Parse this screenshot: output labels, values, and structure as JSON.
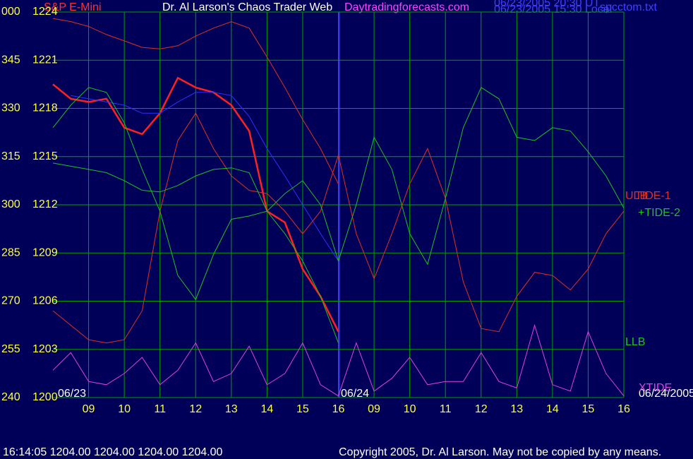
{
  "chart_data": {
    "type": "line",
    "title": "Dr. Al Larson's Chaos Trader Web",
    "website": "Daytradingforecasts.com",
    "instrument": "S&P E-Mini",
    "timestamps": [
      "06/23/2005 20:30 UT",
      "06/23/2005 15:30 Local"
    ],
    "file": "spcctom.txt",
    "date_labels": [
      "06/23",
      "06/24",
      "06/24/2005"
    ],
    "status": "16:14:05  1204.00 1204.00 1204.00 1204.00",
    "copyright": "Copyright 2005, Dr. Al Larson. May not be copied by any means.",
    "x": [
      0,
      0.5,
      1,
      1.5,
      2,
      2.5,
      3,
      3.5,
      4,
      4.5,
      5,
      5.5,
      6,
      6.5,
      7,
      7.5,
      8,
      8.5,
      9,
      9.5,
      10,
      10.5,
      11,
      11.5,
      12,
      12.5,
      13,
      13.5,
      14,
      14.5,
      15,
      15.5,
      16
    ],
    "xlim": [
      0,
      16
    ],
    "xticks": [
      {
        "value": 1,
        "label": "09"
      },
      {
        "value": 2,
        "label": "10"
      },
      {
        "value": 3,
        "label": "11"
      },
      {
        "value": 4,
        "label": "12"
      },
      {
        "value": 5,
        "label": "13"
      },
      {
        "value": 6,
        "label": "14"
      },
      {
        "value": 7,
        "label": "15"
      },
      {
        "value": 8,
        "label": "16"
      },
      {
        "value": 9,
        "label": "09"
      },
      {
        "value": 10,
        "label": "10"
      },
      {
        "value": 11,
        "label": "11"
      },
      {
        "value": 12,
        "label": "12"
      },
      {
        "value": 13,
        "label": "13"
      },
      {
        "value": 14,
        "label": "14"
      },
      {
        "value": 15,
        "label": "15"
      },
      {
        "value": 16,
        "label": "16"
      }
    ],
    "ylim": [
      1200,
      1224
    ],
    "yticks": [
      1200,
      1203,
      1206,
      1209,
      1212,
      1215,
      1218,
      1221,
      1224
    ],
    "y2lim": [
      240,
      360
    ],
    "y2ticks": [
      240,
      255,
      270,
      285,
      300,
      315,
      330,
      345,
      {
        "value": 360,
        "label": "000"
      }
    ],
    "grid": true,
    "series": [
      {
        "color": "#ff2020",
        "values": [
          1219.5,
          1218.6,
          1218.4,
          1218.6,
          1216.8,
          1216.4,
          1217.7,
          1219.9,
          1219.3,
          1219.0,
          1218.2,
          1216.6,
          1211.6,
          1210.9,
          1208.0,
          1206.3,
          1204.1,
          null,
          null,
          null,
          null,
          null,
          null,
          null,
          null,
          null,
          null,
          null,
          null,
          null,
          null,
          null,
          null
        ]
      },
      {
        "color": "#3030ff",
        "values": [
          null,
          1218.8,
          1218.6,
          1218.4,
          1218.2,
          1217.7,
          1217.7,
          1218.4,
          1219.0,
          1219.0,
          1218.8,
          1217.5,
          1215.5,
          1213.8,
          1212.0,
          1210.2,
          1208.5,
          null,
          null,
          null,
          null,
          null,
          null,
          null,
          null,
          null,
          null,
          null,
          null,
          null,
          null,
          null,
          null
        ]
      },
      {
        "name": "ULB",
        "color": "#e03020",
        "values": [
          1223.6,
          1223.4,
          1223.1,
          1222.6,
          1222.2,
          1221.8,
          1221.7,
          1221.9,
          1222.5,
          1223.0,
          1223.4,
          1223.0,
          1221.2,
          1219.3,
          1217.3,
          1215.5,
          1213.3,
          null,
          null,
          null,
          null,
          null,
          null,
          null,
          null,
          null,
          null,
          null,
          null,
          null,
          null,
          null,
          null
        ]
      },
      {
        "name": "TIDE-1",
        "color": "#e03020",
        "values": [
          1205.4,
          1204.5,
          1203.6,
          1203.4,
          1203.6,
          1205.4,
          1211.6,
          1216.0,
          1217.7,
          1215.5,
          1213.8,
          1212.9,
          1212.7,
          1211.6,
          1210.2,
          1211.6,
          1215.1,
          1210.2,
          1207.4,
          1210.2,
          1213.3,
          1215.5,
          1212.4,
          1207.2,
          1204.3,
          1204.1,
          1206.3,
          1207.8,
          1207.6,
          1206.7,
          1208.0,
          1210.2,
          1211.6
        ]
      },
      {
        "name": "+TIDE-2",
        "color": "#20c020",
        "values": [
          1216.8,
          1218.2,
          1219.3,
          1219.0,
          1217.1,
          1214.2,
          1211.6,
          1207.6,
          1206.1,
          1208.9,
          1211.1,
          1211.3,
          1211.6,
          1212.7,
          1213.5,
          1212.0,
          1208.5,
          1212.0,
          1216.2,
          1214.2,
          1210.2,
          1208.3,
          1212.4,
          1216.8,
          1219.3,
          1218.6,
          1216.2,
          1216.0,
          1216.8,
          1216.6,
          1215.3,
          1213.8,
          1211.8
        ]
      },
      {
        "name": "LLB",
        "color": "#20c020",
        "values": [
          1214.6,
          1214.4,
          1214.2,
          1214.0,
          1213.5,
          1212.9,
          1212.8,
          1213.2,
          1213.8,
          1214.2,
          1214.3,
          1214.0,
          1211.6,
          1210.2,
          1208.5,
          1206.3,
          1203.4,
          null,
          null,
          null,
          null,
          null,
          null,
          null,
          null,
          null,
          null,
          null,
          null,
          null,
          null,
          null,
          null
        ]
      },
      {
        "name": "XTIDE",
        "color": "#e040e0",
        "values": [
          1201.7,
          1202.8,
          1201.0,
          1200.8,
          1201.5,
          1202.5,
          1200.8,
          1201.7,
          1203.4,
          1201.0,
          1201.5,
          1203.2,
          1200.8,
          1201.5,
          1203.4,
          1200.8,
          1200.1,
          1203.4,
          1200.4,
          1201.2,
          1202.5,
          1200.8,
          1201.0,
          1201.0,
          1202.8,
          1201.0,
          1200.6,
          1204.5,
          1200.8,
          1200.4,
          1204.1,
          1201.5,
          1200.1
        ]
      }
    ]
  }
}
